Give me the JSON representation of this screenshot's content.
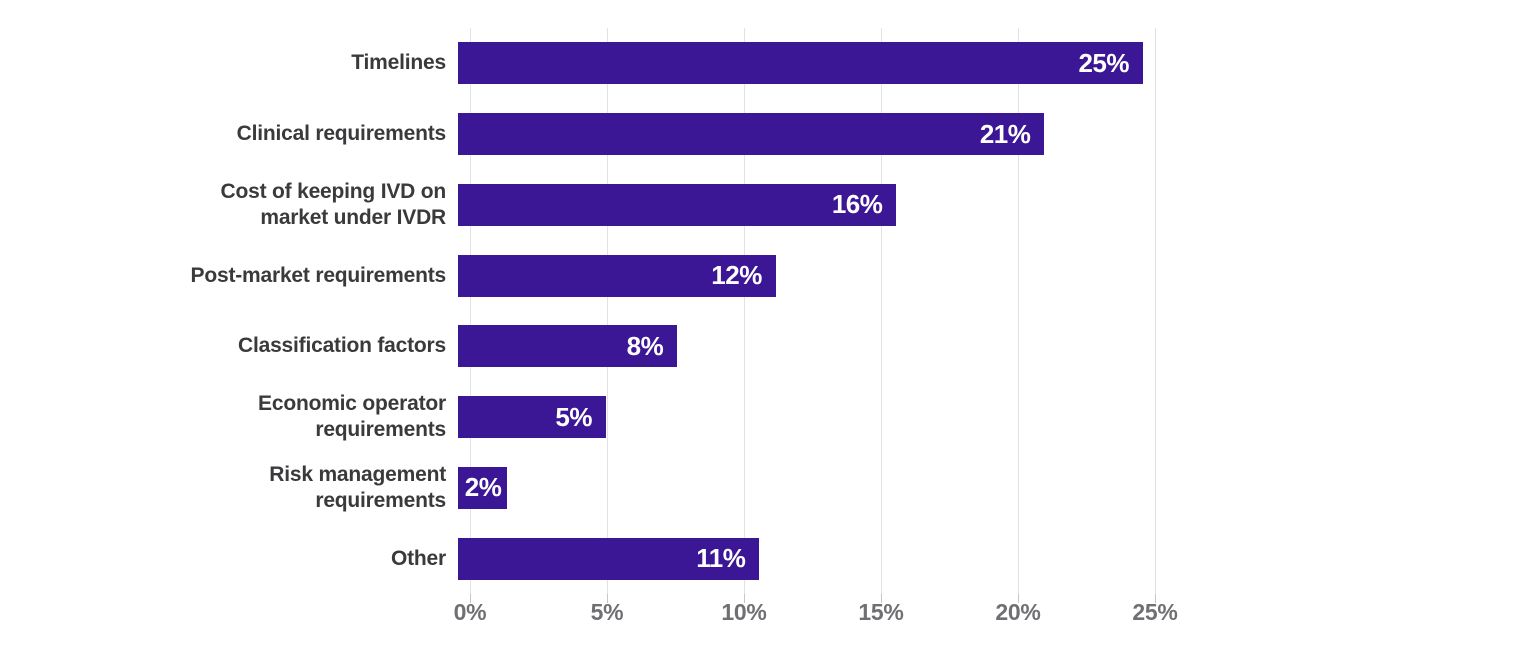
{
  "chart_data": {
    "type": "bar",
    "orientation": "horizontal",
    "title": "",
    "categories": [
      "Timelines",
      "Clinical requirements",
      "Cost of keeping IVD on\nmarket under IVDR",
      "Post-market requirements",
      "Classification factors",
      "Economic operator\nrequirements",
      "Risk management\nrequirements",
      "Other"
    ],
    "values": [
      25,
      21.4,
      16,
      11.6,
      8,
      5.4,
      1.8,
      11
    ],
    "value_labels": [
      "25%",
      "21%",
      "16%",
      "12%",
      "8%",
      "5%",
      "2%",
      "11%"
    ],
    "x_ticks": [
      "0%",
      "5%",
      "10%",
      "15%",
      "20%",
      "25%"
    ],
    "x_tick_values": [
      0,
      5,
      10,
      15,
      20,
      25
    ],
    "xlim": [
      0,
      25
    ],
    "grid": "vertical-gridlines-on",
    "legend": "none",
    "colors": {
      "bar": "#3b1795",
      "value_label": "#ffffff",
      "category_label": "#3a3a3c",
      "tick_label": "#6f7073",
      "gridline": "#e2e2e4",
      "tickmark": "#c6c6c8",
      "background": "#ffffff"
    }
  }
}
